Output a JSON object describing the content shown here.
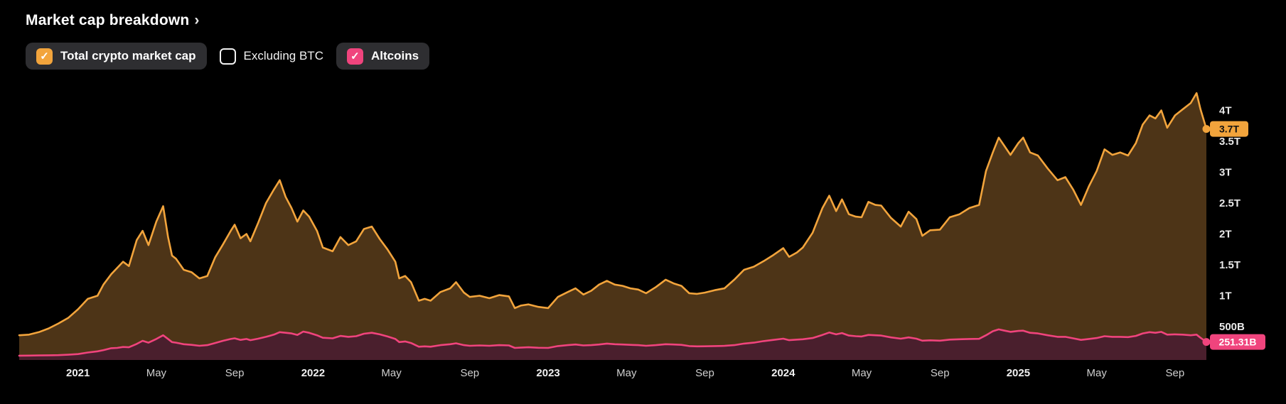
{
  "title": {
    "text": "Market cap breakdown",
    "chevron": "›"
  },
  "legend": [
    {
      "id": "total",
      "label": "Total crypto market cap",
      "checked": true,
      "checkbox_color": "#F2A43C",
      "check_glyph": "✓"
    },
    {
      "id": "excluding-btc",
      "label": "Excluding BTC",
      "checked": false,
      "checkbox_color": "",
      "check_glyph": ""
    },
    {
      "id": "altcoins",
      "label": "Altcoins",
      "checked": true,
      "checkbox_color": "#F0447D",
      "check_glyph": "✓"
    }
  ],
  "colors": {
    "background": "#000000",
    "total_line": "#F2A43C",
    "total_fill": "#4D3417",
    "altcoins_line": "#F0447D",
    "altcoins_fill": "#4A1F2D",
    "pill_background": "#2e2e31"
  },
  "chart_data": {
    "type": "area",
    "title": "Market cap breakdown",
    "unit": "USD market cap (T = trillions, B = billions)",
    "x_unit": "months since 2020-10",
    "x_range": [
      0,
      60.6
    ],
    "y_range": [
      0,
      4.45
    ],
    "grid": false,
    "legend_position": "top-left",
    "x_ticks": [
      {
        "t": 3,
        "label": "2021",
        "type": "year"
      },
      {
        "t": 7,
        "label": "May",
        "type": "month"
      },
      {
        "t": 11,
        "label": "Sep",
        "type": "month"
      },
      {
        "t": 15,
        "label": "2022",
        "type": "year"
      },
      {
        "t": 19,
        "label": "May",
        "type": "month"
      },
      {
        "t": 23,
        "label": "Sep",
        "type": "month"
      },
      {
        "t": 27,
        "label": "2023",
        "type": "year"
      },
      {
        "t": 31,
        "label": "May",
        "type": "month"
      },
      {
        "t": 35,
        "label": "Sep",
        "type": "month"
      },
      {
        "t": 39,
        "label": "2024",
        "type": "year"
      },
      {
        "t": 43,
        "label": "May",
        "type": "month"
      },
      {
        "t": 47,
        "label": "Sep",
        "type": "month"
      },
      {
        "t": 51,
        "label": "2025",
        "type": "year"
      },
      {
        "t": 55,
        "label": "May",
        "type": "month"
      },
      {
        "t": 59,
        "label": "Sep",
        "type": "month"
      }
    ],
    "y_ticks": [
      {
        "v": 4.0,
        "label": "4T"
      },
      {
        "v": 3.5,
        "label": "3.5T"
      },
      {
        "v": 3.0,
        "label": "3T"
      },
      {
        "v": 2.5,
        "label": "2.5T"
      },
      {
        "v": 2.0,
        "label": "2T"
      },
      {
        "v": 1.5,
        "label": "1.5T"
      },
      {
        "v": 1.0,
        "label": "1T"
      },
      {
        "v": 0.5,
        "label": "500B"
      }
    ],
    "current_markers": [
      {
        "series": "Total crypto market cap",
        "value": 3.7,
        "label": "3.7T",
        "color": "#F2A43C",
        "text_color": "#111111",
        "badge_width": 54
      },
      {
        "series": "Altcoins",
        "value": 0.25131,
        "label": "251.31B",
        "color": "#F0447D",
        "text_color": "#ffffff",
        "badge_width": 78
      }
    ],
    "series": [
      {
        "name": "Total crypto market cap",
        "color": "#F2A43C",
        "fill": "#4D3417",
        "value_index": 1
      },
      {
        "name": "Altcoins",
        "color": "#F0447D",
        "fill": "#4A1F2D",
        "value_index": 2
      }
    ],
    "points_format": [
      "t_months",
      "total_T",
      "altcoins_T"
    ],
    "points": [
      [
        0,
        0.36,
        0.03
      ],
      [
        0.5,
        0.37,
        0.031
      ],
      [
        1,
        0.41,
        0.033
      ],
      [
        1.5,
        0.47,
        0.036
      ],
      [
        2,
        0.55,
        0.038
      ],
      [
        2.5,
        0.64,
        0.045
      ],
      [
        3,
        0.78,
        0.055
      ],
      [
        3.5,
        0.95,
        0.08
      ],
      [
        4,
        1.0,
        0.1
      ],
      [
        4.3,
        1.18,
        0.12
      ],
      [
        4.7,
        1.35,
        0.15
      ],
      [
        5,
        1.45,
        0.155
      ],
      [
        5.3,
        1.55,
        0.17
      ],
      [
        5.6,
        1.48,
        0.165
      ],
      [
        6,
        1.9,
        0.22
      ],
      [
        6.3,
        2.05,
        0.27
      ],
      [
        6.6,
        1.82,
        0.24
      ],
      [
        7,
        2.2,
        0.3
      ],
      [
        7.35,
        2.45,
        0.36
      ],
      [
        7.6,
        1.95,
        0.3
      ],
      [
        7.8,
        1.65,
        0.25
      ],
      [
        8,
        1.6,
        0.24
      ],
      [
        8.4,
        1.42,
        0.215
      ],
      [
        8.8,
        1.38,
        0.205
      ],
      [
        9.2,
        1.28,
        0.19
      ],
      [
        9.6,
        1.32,
        0.2
      ],
      [
        10,
        1.62,
        0.235
      ],
      [
        10.4,
        1.83,
        0.27
      ],
      [
        10.8,
        2.05,
        0.3
      ],
      [
        11,
        2.15,
        0.31
      ],
      [
        11.3,
        1.93,
        0.285
      ],
      [
        11.6,
        2.0,
        0.3
      ],
      [
        11.8,
        1.88,
        0.28
      ],
      [
        12.2,
        2.18,
        0.305
      ],
      [
        12.6,
        2.5,
        0.335
      ],
      [
        13,
        2.72,
        0.37
      ],
      [
        13.3,
        2.87,
        0.41
      ],
      [
        13.6,
        2.6,
        0.4
      ],
      [
        13.9,
        2.42,
        0.39
      ],
      [
        14.2,
        2.2,
        0.365
      ],
      [
        14.5,
        2.38,
        0.42
      ],
      [
        14.8,
        2.28,
        0.4
      ],
      [
        15.2,
        2.05,
        0.36
      ],
      [
        15.5,
        1.78,
        0.32
      ],
      [
        16,
        1.72,
        0.31
      ],
      [
        16.4,
        1.95,
        0.35
      ],
      [
        16.8,
        1.82,
        0.335
      ],
      [
        17.2,
        1.88,
        0.345
      ],
      [
        17.6,
        2.08,
        0.385
      ],
      [
        18,
        2.12,
        0.4
      ],
      [
        18.4,
        1.92,
        0.375
      ],
      [
        18.8,
        1.75,
        0.34
      ],
      [
        19.2,
        1.55,
        0.3
      ],
      [
        19.4,
        1.28,
        0.25
      ],
      [
        19.7,
        1.32,
        0.26
      ],
      [
        20,
        1.22,
        0.235
      ],
      [
        20.4,
        0.92,
        0.175
      ],
      [
        20.7,
        0.95,
        0.18
      ],
      [
        21,
        0.92,
        0.175
      ],
      [
        21.5,
        1.06,
        0.2
      ],
      [
        22,
        1.12,
        0.215
      ],
      [
        22.3,
        1.22,
        0.23
      ],
      [
        22.7,
        1.05,
        0.2
      ],
      [
        23,
        0.98,
        0.19
      ],
      [
        23.5,
        1.0,
        0.195
      ],
      [
        24,
        0.96,
        0.19
      ],
      [
        24.5,
        1.01,
        0.2
      ],
      [
        25,
        0.99,
        0.195
      ],
      [
        25.3,
        0.8,
        0.155
      ],
      [
        25.6,
        0.84,
        0.16
      ],
      [
        26,
        0.86,
        0.165
      ],
      [
        26.5,
        0.82,
        0.158
      ],
      [
        27,
        0.8,
        0.155
      ],
      [
        27.5,
        0.98,
        0.185
      ],
      [
        28,
        1.06,
        0.2
      ],
      [
        28.4,
        1.12,
        0.21
      ],
      [
        28.8,
        1.02,
        0.195
      ],
      [
        29.2,
        1.08,
        0.2
      ],
      [
        29.6,
        1.18,
        0.21
      ],
      [
        30,
        1.24,
        0.225
      ],
      [
        30.4,
        1.18,
        0.215
      ],
      [
        30.8,
        1.16,
        0.21
      ],
      [
        31.2,
        1.12,
        0.205
      ],
      [
        31.6,
        1.1,
        0.2
      ],
      [
        32,
        1.04,
        0.19
      ],
      [
        32.5,
        1.14,
        0.2
      ],
      [
        33,
        1.26,
        0.215
      ],
      [
        33.4,
        1.2,
        0.21
      ],
      [
        33.8,
        1.16,
        0.205
      ],
      [
        34.2,
        1.04,
        0.185
      ],
      [
        34.6,
        1.03,
        0.18
      ],
      [
        35,
        1.05,
        0.182
      ],
      [
        35.5,
        1.09,
        0.185
      ],
      [
        36,
        1.12,
        0.188
      ],
      [
        36.5,
        1.26,
        0.2
      ],
      [
        37,
        1.42,
        0.225
      ],
      [
        37.5,
        1.47,
        0.24
      ],
      [
        38,
        1.56,
        0.265
      ],
      [
        38.5,
        1.66,
        0.285
      ],
      [
        39,
        1.77,
        0.305
      ],
      [
        39.3,
        1.63,
        0.28
      ],
      [
        39.7,
        1.7,
        0.29
      ],
      [
        40,
        1.78,
        0.295
      ],
      [
        40.5,
        2.02,
        0.315
      ],
      [
        41,
        2.42,
        0.365
      ],
      [
        41.35,
        2.62,
        0.405
      ],
      [
        41.7,
        2.37,
        0.375
      ],
      [
        42,
        2.56,
        0.395
      ],
      [
        42.35,
        2.32,
        0.355
      ],
      [
        42.7,
        2.28,
        0.345
      ],
      [
        43,
        2.27,
        0.34
      ],
      [
        43.35,
        2.52,
        0.365
      ],
      [
        43.7,
        2.47,
        0.36
      ],
      [
        44,
        2.46,
        0.355
      ],
      [
        44.5,
        2.26,
        0.325
      ],
      [
        45,
        2.12,
        0.305
      ],
      [
        45.4,
        2.36,
        0.325
      ],
      [
        45.8,
        2.24,
        0.305
      ],
      [
        46.1,
        1.97,
        0.272
      ],
      [
        46.5,
        2.06,
        0.278
      ],
      [
        47,
        2.07,
        0.272
      ],
      [
        47.5,
        2.27,
        0.29
      ],
      [
        48,
        2.32,
        0.295
      ],
      [
        48.5,
        2.42,
        0.3
      ],
      [
        49,
        2.47,
        0.302
      ],
      [
        49.35,
        3.02,
        0.36
      ],
      [
        49.7,
        3.32,
        0.425
      ],
      [
        50,
        3.56,
        0.455
      ],
      [
        50.3,
        3.42,
        0.435
      ],
      [
        50.6,
        3.28,
        0.415
      ],
      [
        51,
        3.47,
        0.43
      ],
      [
        51.25,
        3.56,
        0.435
      ],
      [
        51.6,
        3.32,
        0.4
      ],
      [
        52,
        3.27,
        0.39
      ],
      [
        52.5,
        3.06,
        0.36
      ],
      [
        53,
        2.87,
        0.335
      ],
      [
        53.4,
        2.92,
        0.335
      ],
      [
        53.8,
        2.72,
        0.31
      ],
      [
        54.2,
        2.47,
        0.285
      ],
      [
        54.6,
        2.77,
        0.3
      ],
      [
        55,
        3.02,
        0.315
      ],
      [
        55.4,
        3.37,
        0.345
      ],
      [
        55.8,
        3.28,
        0.335
      ],
      [
        56.2,
        3.32,
        0.335
      ],
      [
        56.6,
        3.27,
        0.33
      ],
      [
        57,
        3.47,
        0.35
      ],
      [
        57.35,
        3.77,
        0.39
      ],
      [
        57.7,
        3.92,
        0.41
      ],
      [
        58,
        3.87,
        0.4
      ],
      [
        58.3,
        4.0,
        0.415
      ],
      [
        58.6,
        3.72,
        0.37
      ],
      [
        59,
        3.92,
        0.375
      ],
      [
        59.4,
        4.02,
        0.37
      ],
      [
        59.8,
        4.12,
        0.36
      ],
      [
        60.1,
        4.28,
        0.37
      ],
      [
        60.3,
        4.02,
        0.32
      ],
      [
        60.45,
        3.86,
        0.285
      ],
      [
        60.6,
        3.7,
        0.25131
      ]
    ]
  }
}
